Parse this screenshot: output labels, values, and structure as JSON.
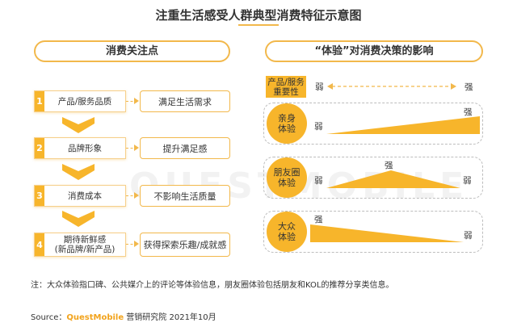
{
  "title": "注重生活感受人群典型消费特征示意图",
  "left_panel": {
    "header": "消费关注点",
    "items": [
      {
        "num": "1",
        "label": "产品/服务品质",
        "effect": "满足生活需求"
      },
      {
        "num": "2",
        "label": "品牌形象",
        "effect": "提升满足感"
      },
      {
        "num": "3",
        "label": "消费成本",
        "effect": "不影响生活质量"
      },
      {
        "num": "4",
        "label": "期待新鲜感\n(新品牌/新产品)",
        "effect": "获得探索乐趣/成就感"
      }
    ]
  },
  "right_panel": {
    "header": "“体验”对消费决策的影响",
    "importance_label": "产品/服务\n重要性",
    "weak": "弱",
    "strong": "强",
    "groups": [
      {
        "label": "亲身\n体验",
        "weak": "弱",
        "strong": "强"
      },
      {
        "label": "朋友圈\n体验",
        "weak_left": "弱",
        "strong": "强",
        "weak_right": "弱"
      },
      {
        "label": "大众\n体验",
        "strong": "强",
        "weak": "弱"
      }
    ]
  },
  "watermark": "QUESTMOBILE",
  "note": "注：大众体验指口碑、公共媒介上的评论等体验信息，朋友圈体验包括朋友和KOL的推荐分享类信息。",
  "source": {
    "prefix": "Source：",
    "brand": "QuestMobile",
    "suffix": " 营销研究院 2021年10月"
  },
  "colors": {
    "accent": "#f7b52b",
    "border": "#f2b84b"
  }
}
